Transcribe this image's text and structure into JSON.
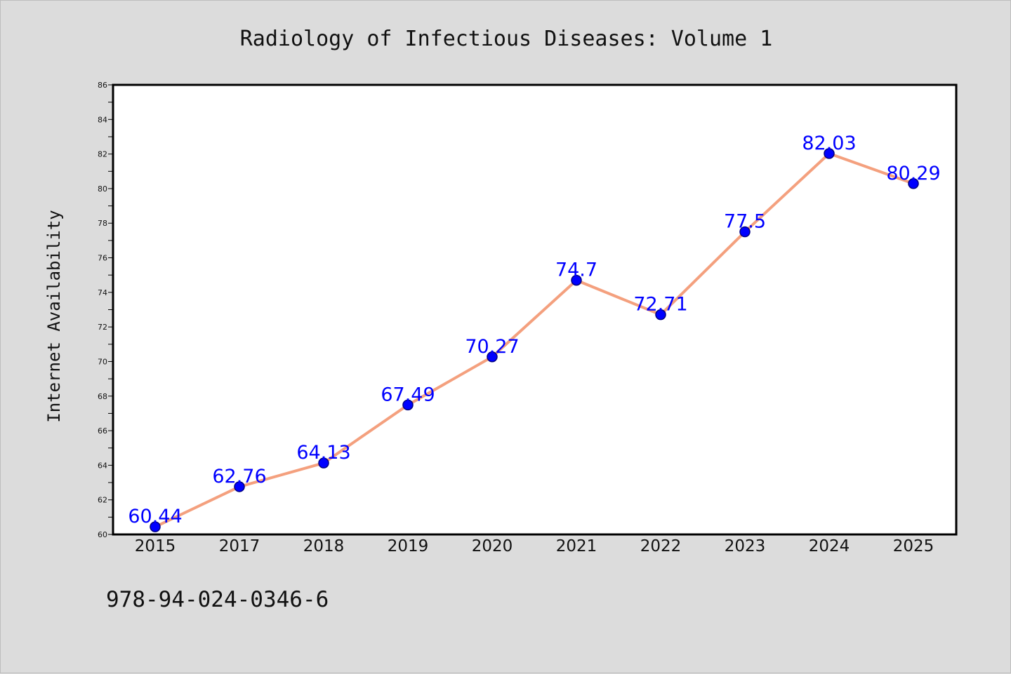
{
  "chart_data": {
    "type": "line",
    "title": "Radiology of Infectious Diseases: Volume 1",
    "xlabel": "",
    "ylabel": "Internet Availability",
    "categories": [
      "2015",
      "2017",
      "2018",
      "2019",
      "2020",
      "2021",
      "2022",
      "2023",
      "2024",
      "2025"
    ],
    "values": [
      60.44,
      62.76,
      64.13,
      67.49,
      70.27,
      74.7,
      72.71,
      77.5,
      82.03,
      80.29
    ],
    "data_labels": [
      "60.44",
      "62.76",
      "64.13",
      "67.49",
      "70.27",
      "74.7",
      "72.71",
      "77.5",
      "82.03",
      "80.29"
    ],
    "ylim": [
      60,
      86
    ],
    "yticks": [
      60,
      62,
      64,
      66,
      68,
      70,
      72,
      74,
      76,
      78,
      80,
      82,
      84,
      86
    ],
    "grid": false,
    "legend": "none",
    "colors": {
      "line": "#f4a07e",
      "marker": "#0000ff",
      "marker_edge": "#000080",
      "data_label": "#0000ff",
      "plot_background": "#ffffff",
      "figure_background": "#dcdcdc"
    }
  },
  "footer": {
    "isbn": "978-94-024-0346-6"
  }
}
